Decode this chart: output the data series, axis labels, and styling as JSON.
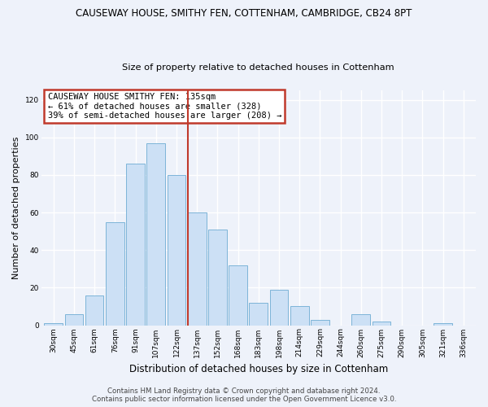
{
  "title": "CAUSEWAY HOUSE, SMITHY FEN, COTTENHAM, CAMBRIDGE, CB24 8PT",
  "subtitle": "Size of property relative to detached houses in Cottenham",
  "xlabel": "Distribution of detached houses by size in Cottenham",
  "ylabel": "Number of detached properties",
  "categories": [
    "30sqm",
    "45sqm",
    "61sqm",
    "76sqm",
    "91sqm",
    "107sqm",
    "122sqm",
    "137sqm",
    "152sqm",
    "168sqm",
    "183sqm",
    "198sqm",
    "214sqm",
    "229sqm",
    "244sqm",
    "260sqm",
    "275sqm",
    "290sqm",
    "305sqm",
    "321sqm",
    "336sqm"
  ],
  "values": [
    1,
    6,
    16,
    55,
    86,
    97,
    80,
    60,
    51,
    32,
    12,
    19,
    10,
    3,
    0,
    6,
    2,
    0,
    0,
    1,
    0
  ],
  "bar_color": "#cce0f5",
  "bar_edge_color": "#7db4d8",
  "vline_x_index": 7,
  "vline_color": "#c0392b",
  "annotation_box_text": "CAUSEWAY HOUSE SMITHY FEN: 135sqm\n← 61% of detached houses are smaller (328)\n39% of semi-detached houses are larger (208) →",
  "annotation_box_color": "#c0392b",
  "annotation_box_facecolor": "white",
  "ylim": [
    0,
    125
  ],
  "yticks": [
    0,
    20,
    40,
    60,
    80,
    100,
    120
  ],
  "footer_line1": "Contains HM Land Registry data © Crown copyright and database right 2024.",
  "footer_line2": "Contains public sector information licensed under the Open Government Licence v3.0.",
  "bg_color": "#eef2fa",
  "grid_color": "white",
  "title_fontsize": 8.5,
  "subtitle_fontsize": 8.2,
  "xlabel_fontsize": 8.5,
  "ylabel_fontsize": 8,
  "tick_fontsize": 6.5,
  "footer_fontsize": 6.2,
  "ann_fontsize": 7.5
}
